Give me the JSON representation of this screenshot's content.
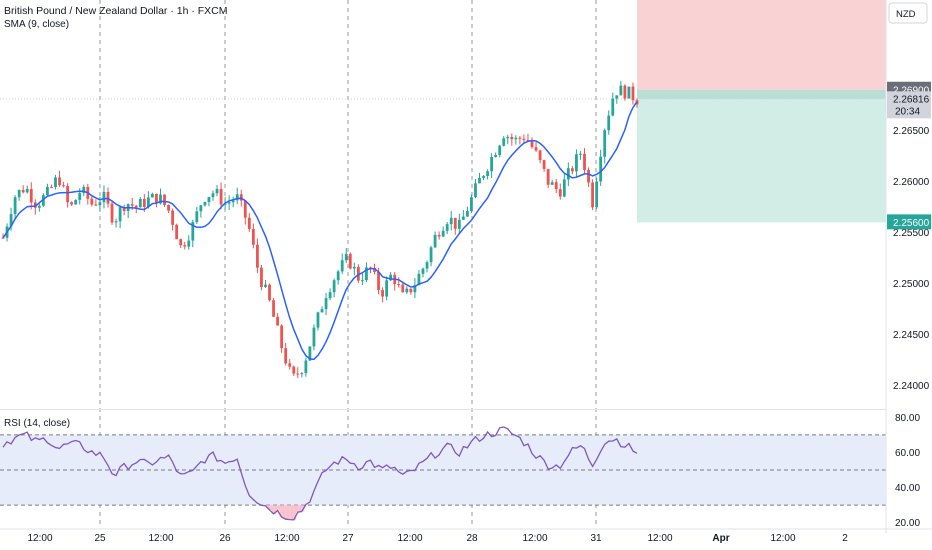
{
  "header": {
    "title": "British Pound / New Zealand Dollar · 1h · FXCM",
    "indicator": "SMA (9, close)"
  },
  "rsi_panel": {
    "label": "RSI (14, close)"
  },
  "currency": "NZD",
  "price_badges": {
    "stop": "2.26900",
    "current": "2.26816",
    "countdown": "20:34",
    "target": "2.25600"
  },
  "colors": {
    "up": "#26a69a",
    "down": "#ef5350",
    "sma": "#2962ff",
    "rsi": "#7e57c2",
    "stop_zone": "#f9d2d3",
    "target_zone": "#d1ede6",
    "rsi_band": "#e7ecfb"
  },
  "chart_data": [
    {
      "type": "candlestick",
      "title": "British Pound / New Zealand Dollar · 1h · FXCM",
      "ylabel": "NZD",
      "ylim": [
        2.2378,
        2.2778
      ],
      "y_ticks": [
        "2.26500",
        "2.26000",
        "2.25500",
        "2.25000",
        "2.24500",
        "2.24000"
      ],
      "x_tick_labels": [
        "12:00",
        "25",
        "12:00",
        "26",
        "12:00",
        "27",
        "12:00",
        "28",
        "12:00",
        "31",
        "12:00",
        "Apr",
        "12:00",
        "2"
      ],
      "series": [
        {
          "name": "SMA (9, close)"
        }
      ],
      "close_path": [
        2.2545,
        2.2585,
        2.2595,
        2.2578,
        2.2588,
        2.2605,
        2.2572,
        2.2592,
        2.2578,
        2.2585,
        2.2562,
        2.258,
        2.2575,
        2.2582,
        2.2585,
        2.257,
        2.2535,
        2.2555,
        2.2585,
        2.259,
        2.2578,
        2.2585,
        2.256,
        2.251,
        2.248,
        2.244,
        2.2405,
        2.242,
        2.2455,
        2.249,
        2.251,
        2.2525,
        2.2505,
        2.2515,
        2.249,
        2.251,
        2.2485,
        2.25,
        2.252,
        2.255,
        2.2565,
        2.2555,
        2.258,
        2.2605,
        2.2625,
        2.2648,
        2.264,
        2.2645,
        2.2625,
        2.26,
        2.259,
        2.261,
        2.263,
        2.258,
        2.265,
        2.269,
        2.2688,
        2.2681
      ],
      "annotations": [
        {
          "kind": "stop-loss zone",
          "from": 2.269,
          "to": 2.27775
        },
        {
          "kind": "take-profit zone",
          "from": 2.256,
          "to": 2.2681
        }
      ]
    },
    {
      "type": "line",
      "title": "RSI (14, close)",
      "ylim": [
        17,
        83
      ],
      "y_ticks": [
        "80.00",
        "60.00",
        "40.00",
        "20.00"
      ],
      "bands": [
        30,
        50,
        70
      ],
      "values": [
        65,
        68,
        70,
        66,
        68,
        62,
        65,
        64,
        60,
        58,
        47,
        52,
        55,
        53,
        56,
        57,
        46,
        48,
        56,
        58,
        54,
        58,
        38,
        32,
        28,
        25,
        23,
        28,
        38,
        50,
        55,
        56,
        52,
        55,
        50,
        52,
        46,
        50,
        55,
        60,
        63,
        60,
        65,
        69,
        71,
        73,
        70,
        65,
        58,
        53,
        52,
        60,
        64,
        53,
        66,
        68,
        64,
        60
      ]
    }
  ]
}
